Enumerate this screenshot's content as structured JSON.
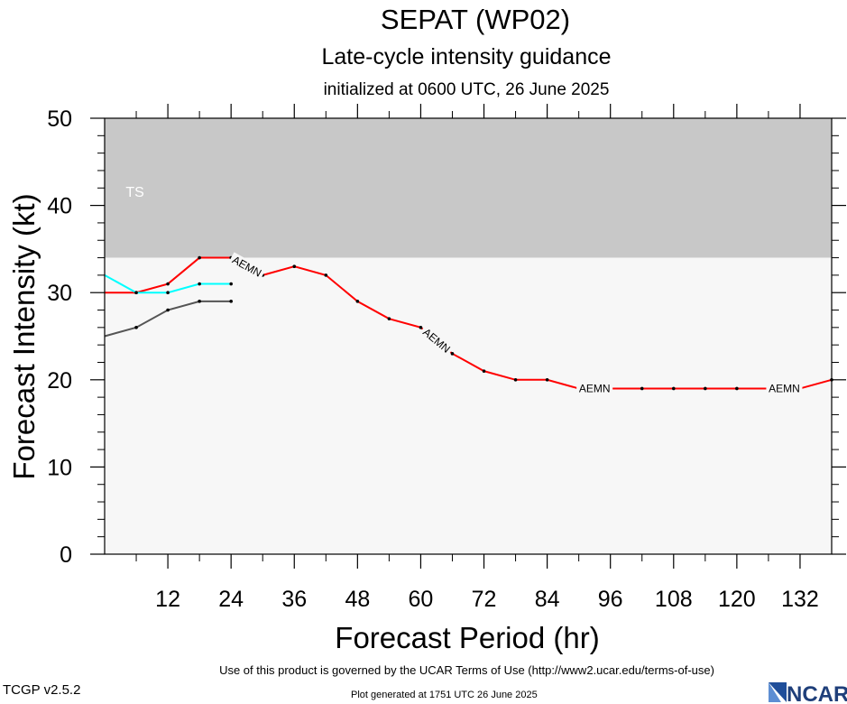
{
  "title": "SEPAT (WP02)",
  "subtitle": "Late-cycle intensity guidance",
  "init_line": "initialized at 0600 UTC, 26 June 2025",
  "footer": {
    "terms": "Use of this product is governed by the UCAR Terms of Use (http://www2.ucar.edu/terms-of-use)",
    "version": "TCGP v2.5.2",
    "generated": "Plot generated at 1751 UTC   26 June 2025",
    "logo_text": "NCAR"
  },
  "chart_data": {
    "type": "line",
    "title": "SEPAT (WP02)",
    "subtitle": "Late-cycle intensity guidance",
    "xlabel": "Forecast Period (hr)",
    "ylabel": "Forecast Intensity (kt)",
    "xlim": [
      0,
      138
    ],
    "ylim": [
      0,
      50
    ],
    "xticks": [
      12,
      24,
      36,
      48,
      60,
      72,
      84,
      96,
      108,
      120,
      132
    ],
    "yticks": [
      0,
      10,
      20,
      30,
      40,
      50
    ],
    "grid": false,
    "bands": [
      {
        "label": "TS",
        "y0": 34,
        "y1": 50,
        "color": "#c8c8c8"
      },
      {
        "label": "",
        "y0": 0,
        "y1": 34,
        "color": "#f7f7f7"
      }
    ],
    "series": [
      {
        "name": "AEMN",
        "color": "#ff0000",
        "x": [
          0,
          6,
          12,
          18,
          24,
          30,
          36,
          42,
          48,
          54,
          60,
          66,
          72,
          78,
          84,
          90,
          96,
          102,
          108,
          114,
          120,
          126,
          132,
          138
        ],
        "y": [
          30,
          30,
          31,
          34,
          34,
          32,
          33,
          32,
          29,
          27,
          26,
          23,
          21,
          20,
          20,
          19,
          19,
          19,
          19,
          19,
          19,
          19,
          19,
          20
        ],
        "labels_at_x": [
          27,
          63,
          93,
          129
        ]
      },
      {
        "name": "",
        "color": "#00ffff",
        "x": [
          0,
          6,
          12,
          18,
          24
        ],
        "y": [
          32,
          30,
          30,
          31,
          31
        ]
      },
      {
        "name": "",
        "color": "#555555",
        "x": [
          0,
          6,
          12,
          18,
          24
        ],
        "y": [
          25,
          26,
          28,
          29,
          29
        ]
      }
    ]
  }
}
